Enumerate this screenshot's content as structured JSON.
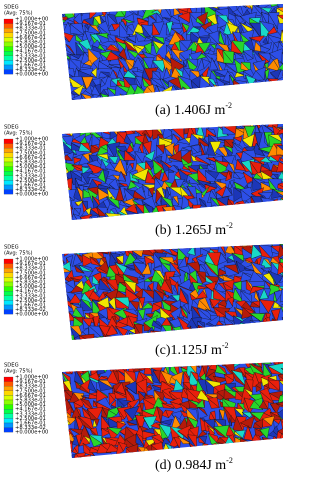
{
  "legend": {
    "title": "SDEG",
    "subtitle": "(Avg: 75%)",
    "labels": [
      "+1.000e+00",
      "+9.167e-01",
      "+8.333e-01",
      "+7.500e-01",
      "+6.667e-01",
      "+5.833e-01",
      "+5.000e-01",
      "+4.167e-01",
      "+3.333e-01",
      "+2.500e-01",
      "+1.667e-01",
      "+8.333e-02",
      "+0.000e+00"
    ]
  },
  "panels": [
    {
      "caption": "(a) 1.406J m",
      "sup": "-2"
    },
    {
      "caption": "(b) 1.265J m",
      "sup": "-2"
    },
    {
      "caption": "(c)1.125J m",
      "sup": "-2"
    },
    {
      "caption": "(d) 0.984J m",
      "sup": "-2"
    }
  ]
}
